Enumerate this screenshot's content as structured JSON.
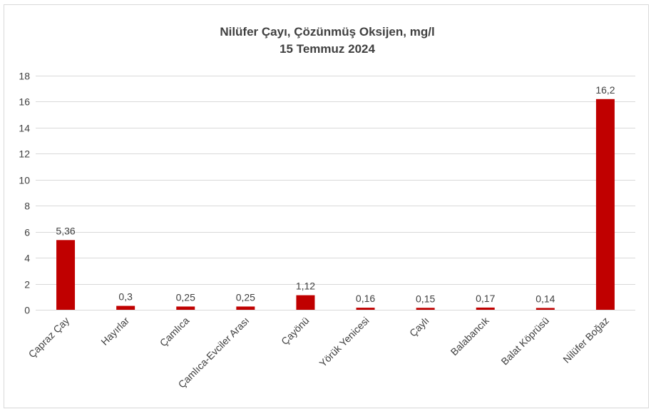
{
  "chart_data": {
    "type": "bar",
    "title": "Nilüfer Çayı, Çözünmüş Oksijen, mg/l",
    "subtitle": "15 Temmuz 2024",
    "categories": [
      "Çapraz Çay",
      "Hayırlar",
      "Çamlıca",
      "Çamlıca-Evciler Arası",
      "Çayönü",
      "Yörük Yenicesi",
      "Çaylı",
      "Balabancık",
      "Balat Köprüsü",
      "Nilüfer Boğaz"
    ],
    "values": [
      5.36,
      0.3,
      0.25,
      0.25,
      1.12,
      0.16,
      0.15,
      0.17,
      0.14,
      16.2
    ],
    "data_labels": [
      "5,36",
      "0,3",
      "0,25",
      "0,25",
      "1,12",
      "0,16",
      "0,15",
      "0,17",
      "0,14",
      "16,2"
    ],
    "ylim": [
      0,
      18
    ],
    "yticks": [
      0,
      2,
      4,
      6,
      8,
      10,
      12,
      14,
      16,
      18
    ],
    "grid": true,
    "bar_color": "#c00000",
    "grid_color": "#d9d9d9"
  }
}
